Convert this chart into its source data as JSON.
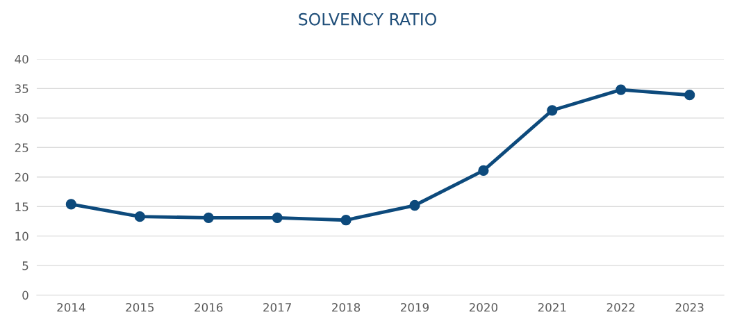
{
  "chart_data": {
    "type": "line",
    "title": "SOLVENCY RATIO",
    "categories": [
      "2014",
      "2015",
      "2016",
      "2017",
      "2018",
      "2019",
      "2020",
      "2021",
      "2022",
      "2023"
    ],
    "series": [
      {
        "color": "#0d4a7c",
        "values": [
          15.4,
          13.3,
          13.1,
          13.1,
          12.7,
          15.2,
          21.1,
          31.3,
          34.8,
          33.9
        ]
      }
    ],
    "ylim": [
      0,
      40
    ],
    "yticks": [
      0,
      5,
      10,
      15,
      20,
      25,
      30,
      35,
      40
    ],
    "grid": "y",
    "marker": "circle",
    "line_style": "solid"
  }
}
